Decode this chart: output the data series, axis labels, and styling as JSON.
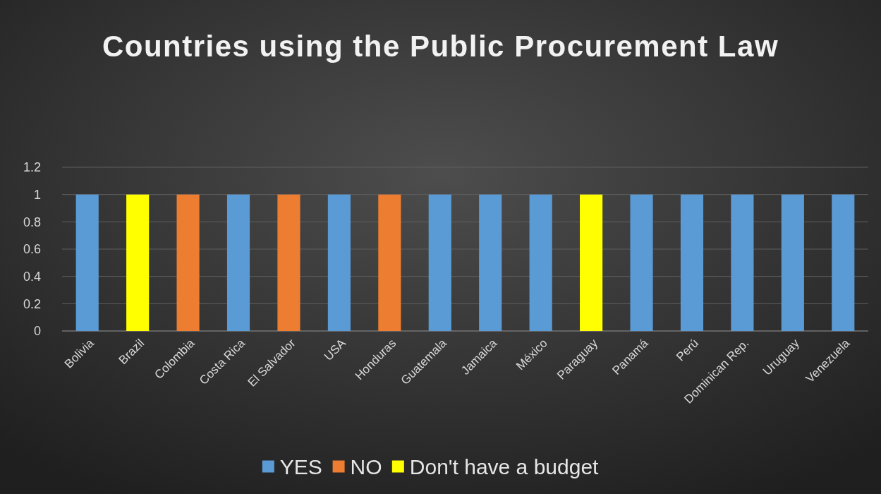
{
  "chart_data": {
    "type": "bar",
    "title": "Countries using the Public Procurement Law",
    "categories": [
      "Bolivia",
      "Brazil",
      "Colombia",
      "Costa Rica",
      "El Salvador",
      "USA",
      "Honduras",
      "Guatemala",
      "Jamaica",
      "México",
      "Paraguay",
      "Panamá",
      "Perú",
      "Dominican Rep.",
      "Uruguay",
      "Venezuela"
    ],
    "stacked": true,
    "series": [
      {
        "name": "YES",
        "color": "#5b9bd5",
        "values": [
          1,
          null,
          null,
          1,
          null,
          1,
          null,
          1,
          1,
          1,
          null,
          1,
          1,
          1,
          1,
          1
        ]
      },
      {
        "name": "NO",
        "color": "#ed7d31",
        "values": [
          null,
          null,
          1,
          null,
          1,
          null,
          1,
          null,
          null,
          null,
          null,
          null,
          null,
          null,
          null,
          null
        ]
      },
      {
        "name": "Don't have a budget",
        "color": "#ffff00",
        "values": [
          null,
          1,
          null,
          null,
          null,
          null,
          null,
          null,
          null,
          null,
          1,
          null,
          null,
          null,
          null,
          null
        ]
      }
    ],
    "ylim": [
      0,
      1.2
    ],
    "yticks": [
      0,
      0.2,
      0.4,
      0.6,
      0.8,
      1,
      1.2
    ],
    "grid": "y",
    "legend": "bottom"
  }
}
